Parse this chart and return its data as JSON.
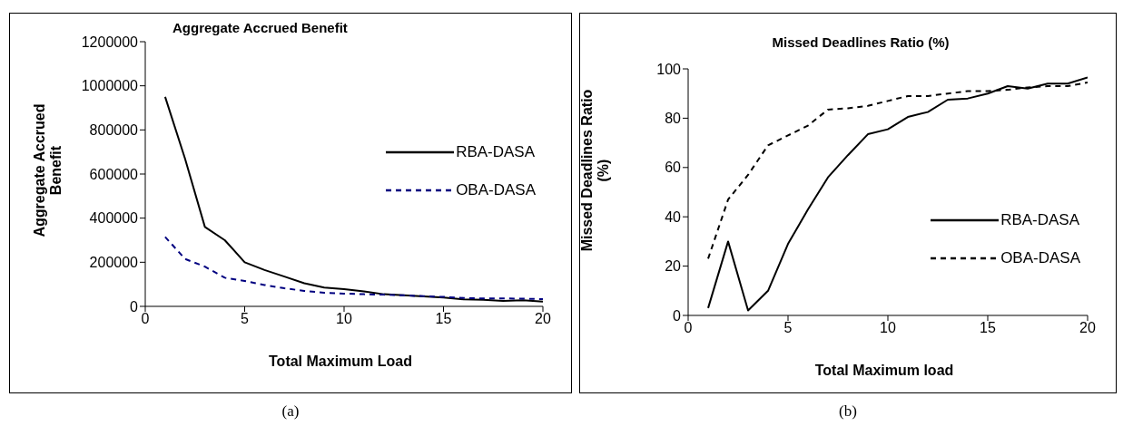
{
  "chart_data": [
    {
      "type": "line",
      "title": "Aggregate Accrued  Benefit",
      "xlabel": "Total Maximum Load",
      "ylabel": "Aggregate Accrued Benefit",
      "x": [
        1,
        2,
        3,
        4,
        5,
        6,
        7,
        8,
        9,
        10,
        11,
        12,
        13,
        14,
        15,
        16,
        17,
        18,
        19,
        20
      ],
      "xlim": [
        0,
        20
      ],
      "xticks": [
        0,
        5,
        10,
        15,
        20
      ],
      "ylim": [
        0,
        1200000
      ],
      "yticks": [
        0,
        200000,
        400000,
        600000,
        800000,
        1000000,
        1200000
      ],
      "grid": false,
      "legend": "right",
      "marker": "none",
      "annotations": [
        "(a)"
      ],
      "series": [
        {
          "name": "RBA-DASA",
          "color": "#000000",
          "line_style": "solid",
          "values": [
            950000,
            670000,
            360000,
            300000,
            200000,
            165000,
            135000,
            105000,
            85000,
            78000,
            68000,
            55000,
            50000,
            45000,
            40000,
            32000,
            30000,
            25000,
            28000,
            22000
          ]
        },
        {
          "name": "OBA-DASA",
          "color": "#000080",
          "line_style": "dashed",
          "values": [
            315000,
            215000,
            180000,
            130000,
            115000,
            97000,
            82000,
            70000,
            62000,
            58000,
            55000,
            53000,
            50000,
            46000,
            43000,
            38000,
            36000,
            36000,
            35000,
            33000
          ]
        }
      ]
    },
    {
      "type": "line",
      "title": "Missed Deadlines Ratio (%)",
      "xlabel": "Total Maximum load",
      "ylabel": "Missed Deadlines Ratio (%)",
      "x": [
        1,
        2,
        3,
        4,
        5,
        6,
        7,
        8,
        9,
        10,
        11,
        12,
        13,
        14,
        15,
        16,
        17,
        18,
        19,
        20
      ],
      "xlim": [
        0,
        20
      ],
      "xticks": [
        0,
        5,
        10,
        15,
        20
      ],
      "ylim": [
        0,
        100
      ],
      "yticks": [
        0,
        20,
        40,
        60,
        80,
        100
      ],
      "grid": false,
      "legend": "bottom right",
      "marker": "none",
      "annotations": [
        "(b)"
      ],
      "series": [
        {
          "name": "RBA-DASA",
          "color": "#000000",
          "line_style": "solid",
          "values": [
            3,
            30,
            2,
            10,
            29,
            43,
            56,
            65,
            73.5,
            75.5,
            80.5,
            82.5,
            87.5,
            88,
            90,
            93,
            92,
            94,
            94,
            96.5
          ]
        },
        {
          "name": "OBA-DASA",
          "color": "#000000",
          "line_style": "dashed",
          "values": [
            23,
            47,
            57,
            69,
            73,
            77,
            83.5,
            84,
            85,
            87,
            89,
            89,
            90,
            91,
            91,
            91.5,
            92.5,
            93,
            93,
            94.5
          ]
        }
      ]
    }
  ]
}
